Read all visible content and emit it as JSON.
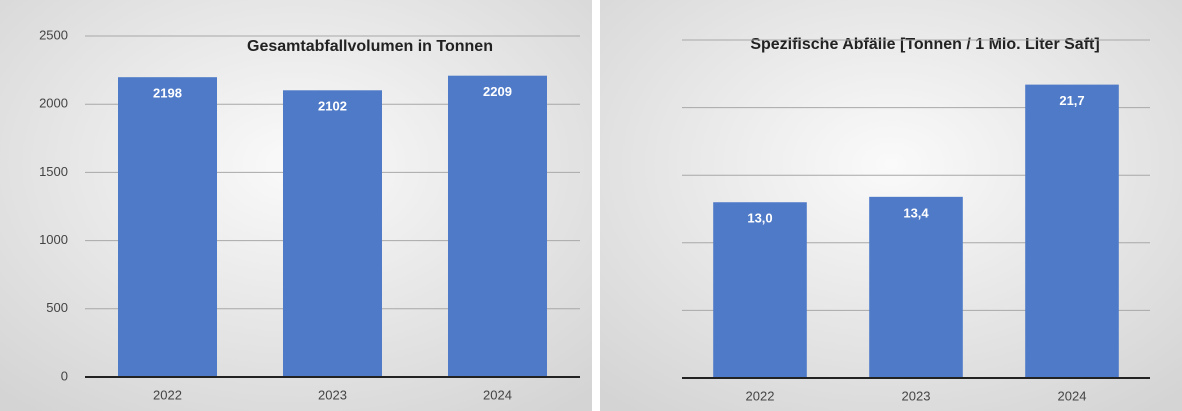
{
  "chart_data": [
    {
      "type": "bar",
      "title": "Gesamtabfallvolumen in Tonnen",
      "categories": [
        "2022",
        "2023",
        "2024"
      ],
      "values": [
        2198,
        2102,
        2209
      ],
      "color": "#4f7ac7",
      "ylim": [
        0,
        2500
      ],
      "yticks": [
        0,
        500,
        1000,
        1500,
        2000,
        2500
      ],
      "grid": true,
      "show_tick_labels": true
    },
    {
      "type": "bar",
      "title": "Spezifische Abfälle   [Tonnen / 1 Mio. Liter Saft]",
      "categories": [
        "2022",
        "2023",
        "2024"
      ],
      "values": [
        13.0,
        13.4,
        21.7
      ],
      "value_labels": [
        "13,0",
        "13,4",
        "21,7"
      ],
      "color": "#4f7ac7",
      "ylim": [
        0,
        25
      ],
      "yticks": [
        0,
        5,
        10,
        15,
        20,
        25
      ],
      "grid": true,
      "show_tick_labels": false
    }
  ]
}
